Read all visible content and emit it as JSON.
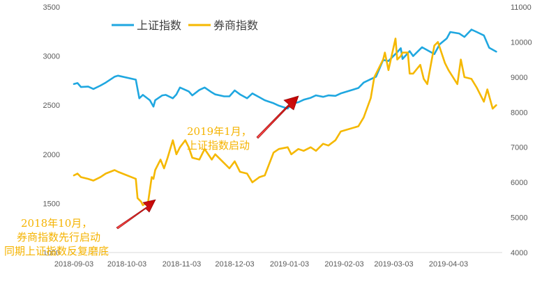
{
  "chart_data": {
    "type": "line",
    "title": "",
    "x_ticks": [
      "2018-09-03",
      "2018-10-03",
      "2018-11-03",
      "2018-12-03",
      "2019-01-03",
      "2019-02-03",
      "2019-03-03",
      "2019-04-03"
    ],
    "y_left": {
      "ticks": [
        1000,
        1500,
        2000,
        2500,
        3000,
        3500
      ],
      "lim": [
        1000,
        3500
      ],
      "labels": [
        "1000",
        "1500",
        "2000",
        "2500",
        "3000",
        "3500"
      ]
    },
    "y_right": {
      "ticks": [
        4000,
        5000,
        6000,
        7000,
        8000,
        9000,
        10000,
        11000
      ],
      "lim": [
        4000,
        11000
      ],
      "labels": [
        "4000",
        "5000",
        "6000",
        "7000",
        "8000",
        "9000",
        "10000",
        "11000"
      ]
    },
    "legend_position": "top-left",
    "grid": false,
    "series": [
      {
        "name": "上证指数",
        "axis": "left",
        "color": "#1fa7e0",
        "x": [
          "2018-09-03",
          "2018-09-05",
          "2018-09-07",
          "2018-09-11",
          "2018-09-14",
          "2018-09-18",
          "2018-09-21",
          "2018-09-26",
          "2018-09-28",
          "2018-10-08",
          "2018-10-10",
          "2018-10-12",
          "2018-10-16",
          "2018-10-18",
          "2018-10-19",
          "2018-10-23",
          "2018-10-25",
          "2018-10-29",
          "2018-10-31",
          "2018-11-02",
          "2018-11-07",
          "2018-11-09",
          "2018-11-13",
          "2018-11-16",
          "2018-11-20",
          "2018-11-22",
          "2018-11-27",
          "2018-11-30",
          "2018-12-03",
          "2018-12-06",
          "2018-12-10",
          "2018-12-13",
          "2018-12-17",
          "2018-12-20",
          "2018-12-25",
          "2018-12-28",
          "2019-01-02",
          "2019-01-04",
          "2019-01-08",
          "2019-01-11",
          "2019-01-15",
          "2019-01-18",
          "2019-01-22",
          "2019-01-25",
          "2019-01-29",
          "2019-02-01",
          "2019-02-11",
          "2019-02-14",
          "2019-02-18",
          "2019-02-21",
          "2019-02-25",
          "2019-02-28",
          "2019-03-05",
          "2019-03-07",
          "2019-03-08",
          "2019-03-12",
          "2019-03-14",
          "2019-03-19",
          "2019-03-22",
          "2019-03-26",
          "2019-03-29",
          "2019-04-02",
          "2019-04-04",
          "2019-04-09",
          "2019-04-12",
          "2019-04-16",
          "2019-04-19",
          "2019-04-23",
          "2019-04-26",
          "2019-04-30"
        ],
        "values": [
          2715,
          2725,
          2685,
          2690,
          2665,
          2700,
          2730,
          2790,
          2800,
          2760,
          2570,
          2605,
          2550,
          2485,
          2550,
          2600,
          2605,
          2570,
          2610,
          2680,
          2640,
          2600,
          2655,
          2680,
          2630,
          2610,
          2590,
          2590,
          2650,
          2610,
          2570,
          2620,
          2580,
          2550,
          2520,
          2495,
          2465,
          2515,
          2530,
          2555,
          2575,
          2600,
          2585,
          2600,
          2595,
          2620,
          2675,
          2730,
          2765,
          2790,
          2960,
          2950,
          3040,
          3080,
          2970,
          3050,
          3000,
          3090,
          3060,
          3020,
          3120,
          3180,
          3245,
          3230,
          3195,
          3270,
          3245,
          3210,
          3085,
          3045
        ]
      },
      {
        "name": "券商指数",
        "axis": "right",
        "color": "#f5b800",
        "x": [
          "2018-09-03",
          "2018-09-05",
          "2018-09-07",
          "2018-09-11",
          "2018-09-14",
          "2018-09-18",
          "2018-09-21",
          "2018-09-26",
          "2018-09-28",
          "2018-10-08",
          "2018-10-09",
          "2018-10-11",
          "2018-10-12",
          "2018-10-15",
          "2018-10-17",
          "2018-10-18",
          "2018-10-19",
          "2018-10-22",
          "2018-10-24",
          "2018-10-26",
          "2018-10-29",
          "2018-10-31",
          "2018-11-02",
          "2018-11-05",
          "2018-11-07",
          "2018-11-09",
          "2018-11-13",
          "2018-11-16",
          "2018-11-20",
          "2018-11-22",
          "2018-11-27",
          "2018-11-30",
          "2018-12-03",
          "2018-12-06",
          "2018-12-10",
          "2018-12-13",
          "2018-12-17",
          "2018-12-20",
          "2018-12-25",
          "2018-12-28",
          "2019-01-02",
          "2019-01-04",
          "2019-01-08",
          "2019-01-11",
          "2019-01-15",
          "2019-01-18",
          "2019-01-22",
          "2019-01-25",
          "2019-01-29",
          "2019-02-01",
          "2019-02-11",
          "2019-02-14",
          "2019-02-18",
          "2019-02-20",
          "2019-02-22",
          "2019-02-25",
          "2019-02-26",
          "2019-02-28",
          "2019-03-04",
          "2019-03-05",
          "2019-03-07",
          "2019-03-08",
          "2019-03-11",
          "2019-03-12",
          "2019-03-14",
          "2019-03-18",
          "2019-03-20",
          "2019-03-22",
          "2019-03-26",
          "2019-03-28",
          "2019-04-01",
          "2019-04-03",
          "2019-04-08",
          "2019-04-10",
          "2019-04-12",
          "2019-04-16",
          "2019-04-19",
          "2019-04-23",
          "2019-04-25",
          "2019-04-28",
          "2019-04-30"
        ],
        "values": [
          6200,
          6250,
          6150,
          6100,
          6050,
          6150,
          6250,
          6350,
          6300,
          6100,
          5550,
          5450,
          5350,
          5450,
          6150,
          6100,
          6350,
          6650,
          6400,
          6700,
          7200,
          6800,
          7000,
          7200,
          7000,
          6700,
          6650,
          6950,
          6650,
          6800,
          6550,
          6400,
          6600,
          6300,
          6250,
          6000,
          6150,
          6200,
          6850,
          6950,
          7000,
          6800,
          6950,
          6900,
          7000,
          6900,
          7100,
          7050,
          7200,
          7450,
          7600,
          7850,
          8400,
          9000,
          9200,
          9500,
          9700,
          9200,
          10100,
          9500,
          9600,
          9700,
          9700,
          9100,
          9100,
          9350,
          8950,
          8800,
          9900,
          10000,
          9400,
          9200,
          8800,
          9500,
          9000,
          8950,
          8700,
          8300,
          8650,
          8100,
          8200
        ]
      }
    ],
    "annotations": [
      {
        "text_lines": [
          "2019年1月，",
          "上证指数启动"
        ]
      },
      {
        "text_lines": [
          "2018年10月，",
          "券商指数先行启动",
          "同期上证指数反复磨底"
        ]
      }
    ]
  }
}
